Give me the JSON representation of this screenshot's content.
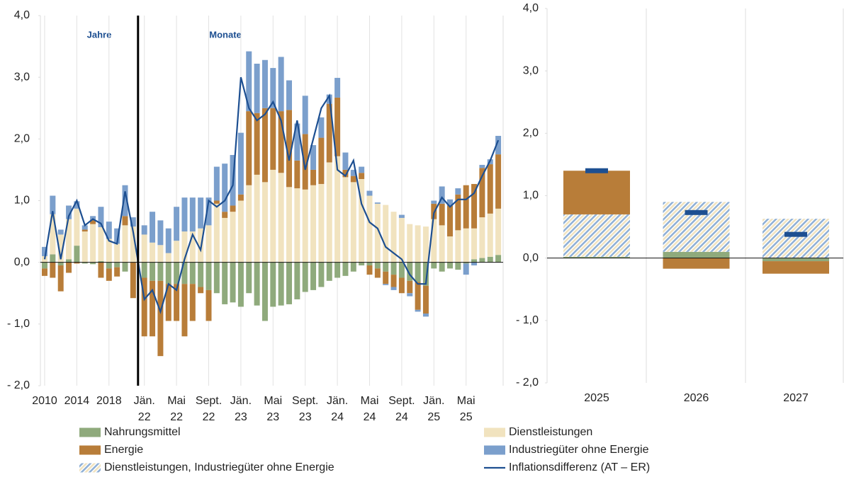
{
  "chart_data": [
    {
      "type": "bar",
      "categories": [
        "2010",
        null,
        null,
        null,
        "2014",
        null,
        null,
        null,
        "2018",
        null,
        null,
        null,
        "Jän. 22",
        null,
        null,
        null,
        "Mai 22",
        null,
        null,
        null,
        "Sept. 22",
        null,
        null,
        null,
        "Jän. 23",
        null,
        null,
        null,
        "Mai 23",
        null,
        null,
        null,
        "Sept. 23",
        null,
        null,
        null,
        "Jän. 24",
        null,
        null,
        null,
        "Mai 24",
        null,
        null,
        null,
        "Sept. 24",
        null,
        null,
        null,
        "Jän. 25",
        null,
        null,
        null,
        "Mai 25",
        null,
        null,
        null,
        null
      ],
      "annotations": [
        "Jahre",
        "Monate"
      ],
      "ylim": [
        -2,
        4
      ],
      "yticks": [
        {
          "value": -2,
          "label": "- 2,0"
        },
        {
          "value": -1,
          "label": "- 1,0"
        },
        {
          "value": 0,
          "label": "0,0"
        },
        {
          "value": 1,
          "label": "1,0"
        },
        {
          "value": 2,
          "label": "2,0"
        },
        {
          "value": 3,
          "label": "3,0"
        },
        {
          "value": 4,
          "label": "4,0"
        }
      ],
      "series": [
        {
          "name": "Nahrungsmittel",
          "kind": "bar",
          "color": "#8faa7c",
          "values": [
            -0.1,
            0.13,
            -0.05,
            0.05,
            0.27,
            -0.02,
            -0.03,
            0.02,
            -0.1,
            -0.08,
            -0.15,
            0.0,
            -0.25,
            -0.3,
            -0.3,
            -0.35,
            -0.35,
            -0.35,
            -0.35,
            -0.4,
            -0.45,
            -0.5,
            -0.68,
            -0.65,
            -0.72,
            -0.5,
            -0.7,
            -0.95,
            -0.72,
            -0.7,
            -0.68,
            -0.6,
            -0.48,
            -0.45,
            -0.4,
            -0.3,
            -0.25,
            -0.22,
            -0.15,
            -0.05,
            -0.05,
            -0.1,
            -0.15,
            -0.2,
            -0.25,
            -0.3,
            -0.32,
            -0.38,
            -0.1,
            -0.15,
            -0.1,
            -0.12,
            -0.02,
            0.05,
            0.07,
            0.09,
            0.12
          ]
        },
        {
          "name": "Dienstleistungen",
          "kind": "bar",
          "color": "#f1e3bf",
          "values": [
            0.1,
            0.65,
            0.45,
            0.65,
            0.6,
            0.5,
            0.62,
            0.55,
            0.38,
            0.3,
            0.6,
            0.58,
            0.45,
            0.32,
            0.28,
            0.15,
            0.35,
            0.5,
            0.5,
            0.55,
            0.6,
            0.95,
            0.72,
            0.82,
            1.0,
            1.25,
            1.42,
            1.3,
            1.5,
            1.45,
            1.22,
            1.2,
            1.18,
            1.25,
            1.27,
            1.62,
            1.72,
            1.38,
            1.3,
            1.35,
            1.08,
            0.95,
            0.93,
            0.82,
            0.72,
            0.62,
            0.6,
            0.58,
            0.7,
            0.6,
            0.42,
            0.52,
            0.55,
            0.5,
            0.66,
            0.7,
            0.75
          ]
        },
        {
          "name": "Energie",
          "kind": "bar",
          "color": "#b87d39",
          "values": [
            -0.12,
            -0.25,
            -0.42,
            -0.17,
            -0.02,
            0.03,
            0.07,
            -0.25,
            -0.2,
            -0.15,
            0.15,
            -0.58,
            -0.95,
            -0.9,
            -1.22,
            -0.6,
            -0.6,
            -0.85,
            -0.6,
            -0.1,
            -0.5,
            0.05,
            0.1,
            0.1,
            0.1,
            1.2,
            1.0,
            1.2,
            1.0,
            1.0,
            1.25,
            0.45,
            0.9,
            0.25,
            0.75,
            0.95,
            0.95,
            0.12,
            0.1,
            0.1,
            -0.15,
            -0.15,
            -0.2,
            -0.2,
            -0.25,
            -0.2,
            -0.45,
            -0.45,
            0.25,
            0.35,
            0.5,
            0.58,
            0.7,
            0.72,
            0.8,
            0.8,
            0.88
          ]
        },
        {
          "name": "Industriegüter ohne Energie",
          "kind": "bar",
          "color": "#7b9fcc",
          "values": [
            0.15,
            0.3,
            0.08,
            0.22,
            0.12,
            0.07,
            0.06,
            0.33,
            0.28,
            0.25,
            0.5,
            0.15,
            0.15,
            0.5,
            0.4,
            0.4,
            0.55,
            0.55,
            0.55,
            0.5,
            0.45,
            0.55,
            0.78,
            0.82,
            1.0,
            0.97,
            0.8,
            0.78,
            0.65,
            0.88,
            0.48,
            0.6,
            0.62,
            0.4,
            0.33,
            0.15,
            0.32,
            0.28,
            0.1,
            0.1,
            0.08,
            0.02,
            -0.02,
            -0.05,
            0.05,
            -0.05,
            -0.03,
            -0.05,
            0.05,
            0.28,
            0.1,
            0.1,
            -0.18,
            -0.05,
            0.05,
            0.08,
            0.3
          ]
        },
        {
          "name": "Inflationsdifferenz (AT – ER)",
          "kind": "line",
          "color": "#1d4f91",
          "values": [
            0.05,
            0.83,
            0.05,
            0.75,
            1.0,
            0.6,
            0.7,
            0.63,
            0.35,
            0.3,
            1.15,
            0.5,
            -0.6,
            -0.45,
            -0.8,
            -0.35,
            -0.45,
            0.05,
            0.45,
            0.2,
            1.0,
            0.9,
            1.0,
            1.25,
            3.0,
            2.5,
            2.3,
            2.4,
            2.6,
            2.3,
            1.65,
            2.3,
            1.5,
            2.0,
            2.5,
            2.7,
            1.5,
            1.4,
            1.65,
            0.95,
            0.65,
            0.55,
            0.25,
            0.15,
            0.05,
            -0.2,
            -0.35,
            -0.35,
            0.8,
            1.05,
            0.9,
            1.02,
            1.02,
            1.12,
            1.4,
            1.65,
            1.98
          ]
        }
      ]
    },
    {
      "type": "bar",
      "categories": [
        "2025",
        "2026",
        "2027"
      ],
      "ylim": [
        -2,
        4
      ],
      "yticks": [
        {
          "value": -2,
          "label": "- 2,0"
        },
        {
          "value": -1,
          "label": "- 1,0"
        },
        {
          "value": 0,
          "label": "0,0"
        },
        {
          "value": 1,
          "label": "1,0"
        },
        {
          "value": 2,
          "label": "2,0"
        },
        {
          "value": 3,
          "label": "3,0"
        },
        {
          "value": 4,
          "label": "4,0"
        }
      ],
      "series": [
        {
          "name": "Nahrungsmittel",
          "kind": "bar",
          "color": "#8faa7c",
          "values": [
            0.02,
            0.1,
            -0.05
          ]
        },
        {
          "name": "Dienstleistungen, Industriegüter ohne Energie",
          "kind": "bar",
          "pattern": "hatch",
          "color": "#8fb0d6",
          "color2": "#f1e3bf",
          "values": [
            0.68,
            0.8,
            0.63
          ]
        },
        {
          "name": "Energie",
          "kind": "bar",
          "color": "#b87d39",
          "values": [
            0.7,
            -0.17,
            -0.2
          ]
        },
        {
          "name": "Inflationsdifferenz (AT – ER)",
          "kind": "marker",
          "color": "#1d4f91",
          "values": [
            1.4,
            0.73,
            0.38
          ]
        }
      ]
    }
  ]
}
